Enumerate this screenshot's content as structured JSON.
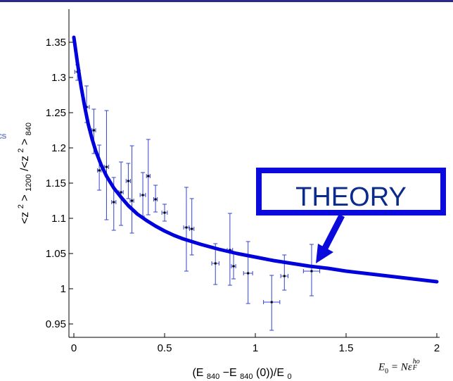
{
  "colors": {
    "theory_curve": "#0000dd",
    "data_points": "#3344cc",
    "theory_box": "#0a0adc",
    "theory_text": "#0a2a8c",
    "axis": "#000000",
    "top_bar": "#2a2a8a",
    "cut_label": "#7f8fc8"
  },
  "cut_label": "cs",
  "e0_definition": {
    "lhs": "E",
    "lhs_sub": "0",
    "equals": " =  ",
    "n": "N",
    "epsilon": "ε",
    "sup": "ho",
    "sub": "F"
  },
  "chart_data": {
    "type": "scatter",
    "xlabel": {
      "prefix": "(E",
      "sub1": "840",
      "mid1": "−E",
      "sub2": "840",
      "mid2": "(0))/E",
      "sub3": "0"
    },
    "ylabel": {
      "p1": "<z",
      "sup1": "2",
      "p2": ">",
      "sub1": "1200",
      "p3": "/<z",
      "sup2": "2",
      "p4": ">",
      "sub2": "840"
    },
    "xlim": [
      0,
      2
    ],
    "ylim": [
      0.93,
      1.395
    ],
    "xticks": [
      0,
      0.5,
      1,
      1.5,
      2
    ],
    "xtick_labels": [
      "0",
      "0.5",
      "1",
      "1.5",
      "2"
    ],
    "yticks": [
      0.95,
      1,
      1.05,
      1.1,
      1.15,
      1.2,
      1.25,
      1.3,
      1.35
    ],
    "ytick_labels": [
      "0.95",
      "1",
      "1.05",
      "1.1",
      "1.15",
      "1.2",
      "1.25",
      "1.3",
      "1.35"
    ],
    "grid": false,
    "series": [
      {
        "type": "errorbar",
        "points": [
          {
            "x": 0.02,
            "y": 1.308,
            "xerr": 0.015,
            "yerr_low": 0.012,
            "yerr_high": 0.01
          },
          {
            "x": 0.07,
            "y": 1.258,
            "xerr": 0.015,
            "yerr_low": 0.022,
            "yerr_high": 0.03
          },
          {
            "x": 0.11,
            "y": 1.225,
            "xerr": 0.01,
            "yerr_low": 0.033,
            "yerr_high": 0.03
          },
          {
            "x": 0.14,
            "y": 1.168,
            "xerr": 0.01,
            "yerr_low": 0.028,
            "yerr_high": 0.036
          },
          {
            "x": 0.18,
            "y": 1.173,
            "xerr": 0.012,
            "yerr_low": 0.075,
            "yerr_high": 0.08
          },
          {
            "x": 0.22,
            "y": 1.123,
            "xerr": 0.012,
            "yerr_low": 0.04,
            "yerr_high": 0.035
          },
          {
            "x": 0.26,
            "y": 1.137,
            "xerr": 0.012,
            "yerr_low": 0.047,
            "yerr_high": 0.043
          },
          {
            "x": 0.3,
            "y": 1.153,
            "xerr": 0.012,
            "yerr_low": 0.025,
            "yerr_high": 0.025
          },
          {
            "x": 0.32,
            "y": 1.125,
            "xerr": 0.01,
            "yerr_low": 0.046,
            "yerr_high": 0.078
          },
          {
            "x": 0.38,
            "y": 1.133,
            "xerr": 0.015,
            "yerr_low": 0.03,
            "yerr_high": 0.032
          },
          {
            "x": 0.41,
            "y": 1.16,
            "xerr": 0.01,
            "yerr_low": 0.055,
            "yerr_high": 0.052
          },
          {
            "x": 0.45,
            "y": 1.127,
            "xerr": 0.01,
            "yerr_low": 0.018,
            "yerr_high": 0.02
          },
          {
            "x": 0.5,
            "y": 1.108,
            "xerr": 0.015,
            "yerr_low": 0.012,
            "yerr_high": 0.012
          },
          {
            "x": 0.62,
            "y": 1.087,
            "xerr": 0.015,
            "yerr_low": 0.062,
            "yerr_high": 0.057
          },
          {
            "x": 0.65,
            "y": 1.085,
            "xerr": 0.012,
            "yerr_low": 0.037,
            "yerr_high": 0.043
          },
          {
            "x": 0.78,
            "y": 1.036,
            "xerr": 0.02,
            "yerr_low": 0.03,
            "yerr_high": 0.028
          },
          {
            "x": 0.86,
            "y": 1.055,
            "xerr": 0.015,
            "yerr_low": 0.05,
            "yerr_high": 0.052
          },
          {
            "x": 0.88,
            "y": 1.032,
            "xerr": 0.012,
            "yerr_low": 0.018,
            "yerr_high": 0.018
          },
          {
            "x": 0.96,
            "y": 1.022,
            "xerr": 0.025,
            "yerr_low": 0.043,
            "yerr_high": 0.045
          },
          {
            "x": 1.09,
            "y": 0.981,
            "xerr": 0.045,
            "yerr_low": 0.04,
            "yerr_high": 0.038
          },
          {
            "x": 1.16,
            "y": 1.018,
            "xerr": 0.02,
            "yerr_low": 0.02,
            "yerr_high": 0.03
          },
          {
            "x": 1.31,
            "y": 1.025,
            "xerr": 0.045,
            "yerr_low": 0.035,
            "yerr_high": 0.038
          }
        ]
      },
      {
        "type": "line",
        "x": [
          0.0,
          0.02,
          0.04,
          0.06,
          0.08,
          0.1,
          0.12,
          0.15,
          0.18,
          0.22,
          0.26,
          0.3,
          0.35,
          0.4,
          0.45,
          0.5,
          0.55,
          0.6,
          0.7,
          0.8,
          0.9,
          1.0,
          1.1,
          1.2,
          1.3,
          1.4,
          1.5,
          1.6,
          1.7,
          1.8,
          1.9,
          2.0
        ],
        "y": [
          1.357,
          1.32,
          1.287,
          1.258,
          1.233,
          1.213,
          1.196,
          1.176,
          1.16,
          1.143,
          1.13,
          1.118,
          1.106,
          1.097,
          1.089,
          1.082,
          1.076,
          1.071,
          1.063,
          1.056,
          1.05,
          1.045,
          1.04,
          1.036,
          1.032,
          1.029,
          1.025,
          1.022,
          1.019,
          1.016,
          1.013,
          1.01
        ]
      }
    ],
    "annotations": [
      {
        "text": "THEORY",
        "arrow_to": {
          "x": 1.34,
          "y": 1.035
        }
      }
    ]
  }
}
